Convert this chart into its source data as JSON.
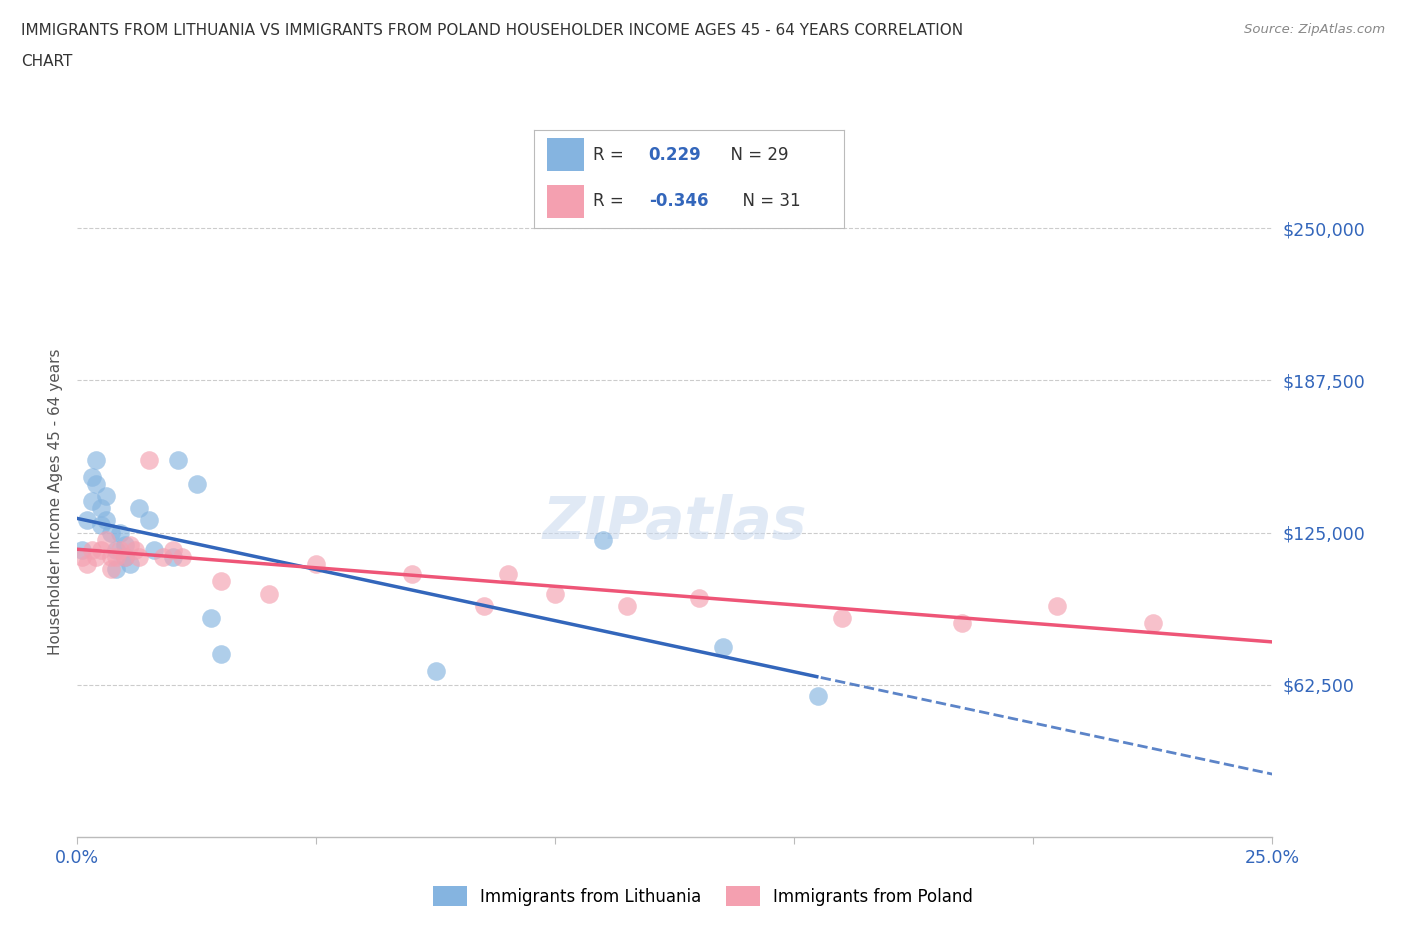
{
  "title_line1": "IMMIGRANTS FROM LITHUANIA VS IMMIGRANTS FROM POLAND HOUSEHOLDER INCOME AGES 45 - 64 YEARS CORRELATION",
  "title_line2": "CHART",
  "source": "Source: ZipAtlas.com",
  "ylabel": "Householder Income Ages 45 - 64 years",
  "xlim": [
    0.0,
    0.25
  ],
  "ylim": [
    0,
    275000
  ],
  "R_lithuania": 0.229,
  "N_lithuania": 29,
  "R_poland": -0.346,
  "N_poland": 31,
  "color_lithuania": "#85B4E0",
  "color_poland": "#F4A0B0",
  "color_lithuania_line": "#3366BB",
  "color_poland_line": "#EE5577",
  "color_axis_labels": "#3366BB",
  "background_color": "#FFFFFF",
  "grid_color": "#CCCCCC",
  "lithuania_x": [
    0.001,
    0.002,
    0.003,
    0.003,
    0.004,
    0.004,
    0.005,
    0.005,
    0.006,
    0.006,
    0.007,
    0.008,
    0.008,
    0.009,
    0.01,
    0.01,
    0.011,
    0.013,
    0.015,
    0.016,
    0.02,
    0.021,
    0.025,
    0.028,
    0.03,
    0.075,
    0.11,
    0.135,
    0.155
  ],
  "lithuania_y": [
    118000,
    130000,
    148000,
    138000,
    155000,
    145000,
    135000,
    128000,
    140000,
    130000,
    125000,
    118000,
    110000,
    125000,
    120000,
    115000,
    112000,
    135000,
    130000,
    118000,
    115000,
    155000,
    145000,
    90000,
    75000,
    68000,
    122000,
    78000,
    58000
  ],
  "poland_x": [
    0.001,
    0.002,
    0.003,
    0.004,
    0.005,
    0.006,
    0.007,
    0.007,
    0.008,
    0.009,
    0.01,
    0.011,
    0.012,
    0.013,
    0.015,
    0.018,
    0.02,
    0.022,
    0.03,
    0.04,
    0.05,
    0.07,
    0.085,
    0.09,
    0.1,
    0.115,
    0.13,
    0.16,
    0.185,
    0.205,
    0.225
  ],
  "poland_y": [
    115000,
    112000,
    118000,
    115000,
    118000,
    122000,
    115000,
    110000,
    115000,
    118000,
    115000,
    120000,
    118000,
    115000,
    155000,
    115000,
    118000,
    115000,
    105000,
    100000,
    112000,
    108000,
    95000,
    108000,
    100000,
    95000,
    98000,
    90000,
    88000,
    95000,
    88000
  ]
}
